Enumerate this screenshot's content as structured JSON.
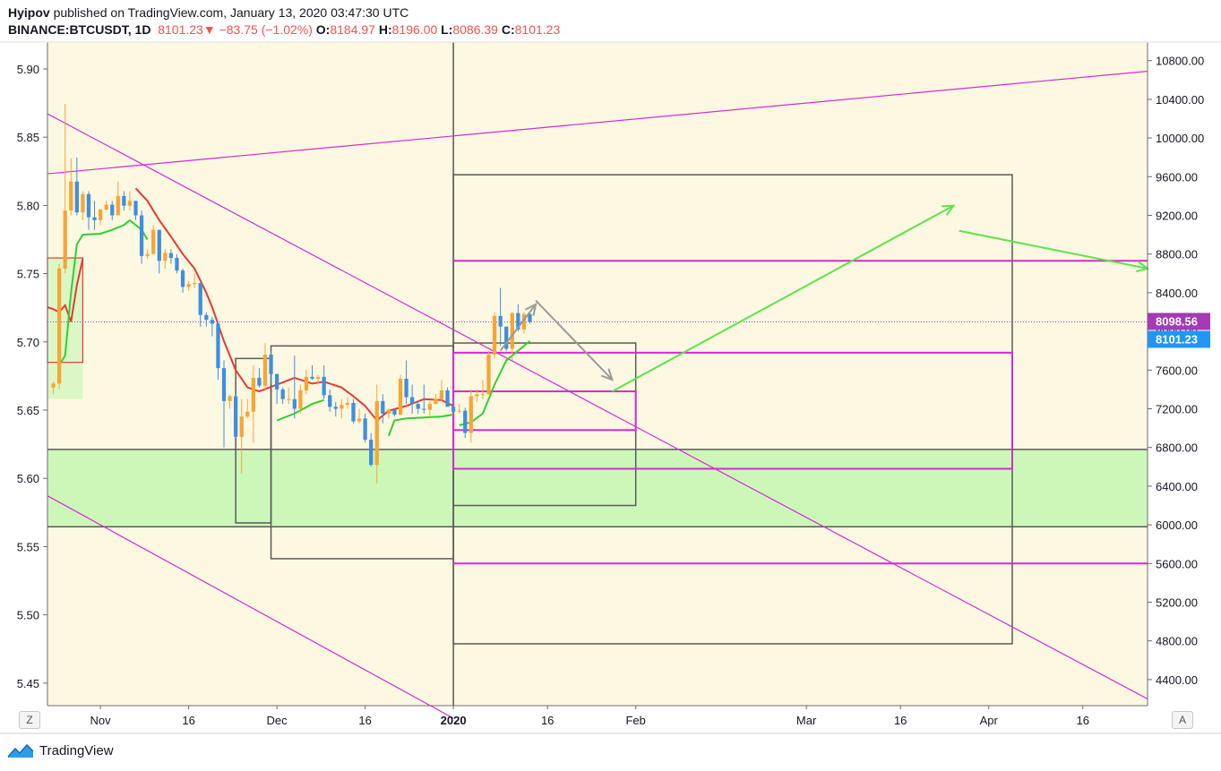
{
  "header": {
    "author": "Hyipov",
    "published": "published on TradingView.com, January 13, 2020 03:47:30 UTC",
    "symbol": "BINANCE:BTCUSDT, 1D",
    "last": "8101.23",
    "change": "−83.75 (−1.02%)",
    "o_label": "O:",
    "o_value": "8184.97",
    "h_label": "H:",
    "h_value": "8196.00",
    "l_label": "L:",
    "l_value": "8086.39",
    "c_label": "C:",
    "c_value": "8101.23"
  },
  "footer": {
    "brand": "TradingView"
  },
  "axis_buttons": {
    "left": "Z",
    "right": "A"
  },
  "colors": {
    "background": "#fdf8e1",
    "up_candle": "#f7a535",
    "down_candle": "#3d8fe0",
    "trendline": "#d42ad4",
    "box_gray": "#5a5a5a",
    "green_zone": "#cdf7b9",
    "green_arrow": "#5ee34b",
    "red_ma": "#e53935",
    "green_ma": "#2ed12e",
    "price_label_purple": "#a53ab5",
    "price_label_blue": "#2196f3"
  },
  "chart_data": {
    "type": "candlestick",
    "left_axis": {
      "ticks": [
        "5.90",
        "5.85",
        "5.80",
        "5.75",
        "5.70",
        "5.65",
        "5.60",
        "5.55",
        "5.50",
        "5.45"
      ]
    },
    "right_axis": {
      "ticks": [
        "10800.00",
        "10400.00",
        "10000.00",
        "9600.00",
        "9200.00",
        "8800.00",
        "8400.00",
        "8000.00",
        "7600.00",
        "7200.00",
        "6800.00",
        "6400.00",
        "6000.00",
        "5600.00",
        "5200.00",
        "4800.00",
        "4400.00"
      ],
      "range": [
        4100,
        11000
      ]
    },
    "x_axis": {
      "ticks": [
        "Nov",
        "16",
        "Dec",
        "16",
        "2020",
        "16",
        "Feb",
        "Mar",
        "16",
        "Apr",
        "16"
      ],
      "range": [
        "2019-10-23",
        "2020-04-27"
      ]
    },
    "price_labels": [
      {
        "value": "8098.56",
        "color": "#a53ab5"
      },
      {
        "value": "8101.23",
        "color": "#2196f3"
      }
    ],
    "candles": [
      [
        "2019-10-24",
        7420,
        7480,
        7350,
        7460
      ],
      [
        "2019-10-25",
        7460,
        8700,
        7400,
        8650
      ],
      [
        "2019-10-26",
        8650,
        10350,
        8600,
        9250
      ],
      [
        "2019-10-27",
        9250,
        9790,
        9200,
        9550
      ],
      [
        "2019-10-28",
        9550,
        9800,
        9200,
        9230
      ],
      [
        "2019-10-29",
        9230,
        9450,
        9150,
        9420
      ],
      [
        "2019-10-30",
        9420,
        9450,
        9050,
        9180
      ],
      [
        "2019-10-31",
        9180,
        9350,
        9050,
        9150
      ],
      [
        "2019-11-01",
        9150,
        9270,
        9100,
        9260
      ],
      [
        "2019-11-02",
        9260,
        9350,
        9250,
        9310
      ],
      [
        "2019-11-03",
        9310,
        9350,
        9150,
        9200
      ],
      [
        "2019-11-04",
        9200,
        9550,
        9200,
        9400
      ],
      [
        "2019-11-05",
        9400,
        9450,
        9250,
        9300
      ],
      [
        "2019-11-06",
        9300,
        9450,
        9250,
        9350
      ],
      [
        "2019-11-07",
        9350,
        9350,
        9150,
        9200
      ],
      [
        "2019-11-08",
        9200,
        9250,
        8700,
        8780
      ],
      [
        "2019-11-09",
        8780,
        8850,
        8750,
        8800
      ],
      [
        "2019-11-10",
        8800,
        9100,
        8800,
        9050
      ],
      [
        "2019-11-11",
        9050,
        9050,
        8600,
        8730
      ],
      [
        "2019-11-12",
        8730,
        8850,
        8650,
        8810
      ],
      [
        "2019-11-13",
        8810,
        8850,
        8700,
        8760
      ],
      [
        "2019-11-14",
        8760,
        8800,
        8600,
        8630
      ],
      [
        "2019-11-15",
        8630,
        8650,
        8400,
        8460
      ],
      [
        "2019-11-16",
        8460,
        8520,
        8420,
        8490
      ],
      [
        "2019-11-17",
        8490,
        8600,
        8450,
        8500
      ],
      [
        "2019-11-18",
        8500,
        8500,
        8050,
        8170
      ],
      [
        "2019-11-19",
        8170,
        8200,
        8050,
        8120
      ],
      [
        "2019-11-20",
        8120,
        8150,
        7950,
        8080
      ],
      [
        "2019-11-21",
        8080,
        8100,
        7500,
        7620
      ],
      [
        "2019-11-22",
        7620,
        7700,
        6800,
        7280
      ],
      [
        "2019-11-23",
        7280,
        7350,
        7200,
        7330
      ],
      [
        "2019-11-24",
        7330,
        7350,
        6900,
        6910
      ],
      [
        "2019-11-25",
        6910,
        7300,
        6530,
        7120
      ],
      [
        "2019-11-26",
        7120,
        7300,
        7100,
        7170
      ],
      [
        "2019-11-27",
        7170,
        7650,
        6850,
        7520
      ],
      [
        "2019-11-28",
        7520,
        7620,
        7420,
        7440
      ],
      [
        "2019-11-29",
        7440,
        7880,
        7400,
        7760
      ],
      [
        "2019-11-30",
        7760,
        7800,
        7460,
        7560
      ],
      [
        "2019-12-01",
        7560,
        7560,
        7250,
        7400
      ],
      [
        "2019-12-02",
        7400,
        7420,
        7250,
        7300
      ],
      [
        "2019-12-03",
        7300,
        7420,
        7250,
        7300
      ],
      [
        "2019-12-04",
        7300,
        7750,
        7100,
        7200
      ],
      [
        "2019-12-05",
        7200,
        7450,
        7150,
        7390
      ],
      [
        "2019-12-06",
        7390,
        7600,
        7350,
        7530
      ],
      [
        "2019-12-07",
        7530,
        7650,
        7500,
        7510
      ],
      [
        "2019-12-08",
        7510,
        7550,
        7450,
        7530
      ],
      [
        "2019-12-09",
        7530,
        7650,
        7300,
        7340
      ],
      [
        "2019-12-10",
        7340,
        7400,
        7170,
        7220
      ],
      [
        "2019-12-11",
        7220,
        7270,
        7120,
        7200
      ],
      [
        "2019-12-12",
        7200,
        7300,
        7100,
        7240
      ],
      [
        "2019-12-13",
        7240,
        7320,
        7200,
        7260
      ],
      [
        "2019-12-14",
        7260,
        7300,
        7050,
        7070
      ],
      [
        "2019-12-15",
        7070,
        7200,
        7050,
        7100
      ],
      [
        "2019-12-16",
        7100,
        7150,
        6850,
        6880
      ],
      [
        "2019-12-17",
        6880,
        6950,
        6600,
        6620
      ],
      [
        "2019-12-18",
        6620,
        7450,
        6430,
        7280
      ],
      [
        "2019-12-19",
        7280,
        7350,
        7050,
        7150
      ],
      [
        "2019-12-20",
        7150,
        7200,
        7100,
        7190
      ],
      [
        "2019-12-21",
        7190,
        7200,
        7120,
        7140
      ],
      [
        "2019-12-22",
        7140,
        7550,
        7130,
        7510
      ],
      [
        "2019-12-23",
        7510,
        7700,
        7250,
        7320
      ],
      [
        "2019-12-24",
        7320,
        7450,
        7150,
        7250
      ],
      [
        "2019-12-25",
        7250,
        7280,
        7150,
        7200
      ],
      [
        "2019-12-26",
        7200,
        7450,
        7150,
        7190
      ],
      [
        "2019-12-27",
        7190,
        7280,
        7100,
        7250
      ],
      [
        "2019-12-28",
        7250,
        7350,
        7250,
        7300
      ],
      [
        "2019-12-29",
        7300,
        7500,
        7280,
        7390
      ],
      [
        "2019-12-30",
        7390,
        7420,
        7230,
        7220
      ],
      [
        "2019-12-31",
        7220,
        7300,
        7150,
        7170
      ],
      [
        "2020-01-01",
        7170,
        7250,
        7150,
        7180
      ],
      [
        "2020-01-02",
        7180,
        7210,
        6900,
        6950
      ],
      [
        "2020-01-03",
        6950,
        7400,
        6850,
        7330
      ],
      [
        "2020-01-04",
        7330,
        7400,
        7270,
        7350
      ],
      [
        "2020-01-05",
        7350,
        7500,
        7300,
        7350
      ],
      [
        "2020-01-06",
        7350,
        7800,
        7350,
        7760
      ],
      [
        "2020-01-07",
        7760,
        8200,
        7720,
        8160
      ],
      [
        "2020-01-08",
        8160,
        8450,
        7850,
        8050
      ],
      [
        "2020-01-09",
        8050,
        8050,
        7800,
        7820
      ],
      [
        "2020-01-10",
        7820,
        8200,
        7700,
        8190
      ],
      [
        "2020-01-11",
        8190,
        8280,
        8000,
        8020
      ],
      [
        "2020-01-12",
        8020,
        8200,
        7980,
        8180
      ],
      [
        "2020-01-13",
        8180,
        8200,
        8080,
        8100
      ]
    ],
    "moving_averages": [
      {
        "color": "#e53935",
        "points": [
          [
            "2019-10-23",
            8250
          ],
          [
            "2019-10-24",
            8230
          ],
          [
            "2019-10-25",
            8200
          ],
          [
            "2019-10-26",
            8270
          ],
          [
            "2019-10-27",
            8100
          ],
          [
            "2019-10-28",
            8480
          ],
          [
            "2019-10-29",
            8750
          ]
        ]
      },
      {
        "color": "#e53935",
        "points": [
          [
            "2019-11-07",
            9480
          ],
          [
            "2019-11-09",
            9350
          ],
          [
            "2019-11-11",
            9150
          ],
          [
            "2019-11-13",
            8980
          ],
          [
            "2019-11-15",
            8800
          ],
          [
            "2019-11-17",
            8650
          ],
          [
            "2019-11-19",
            8400
          ],
          [
            "2019-11-20",
            8250
          ],
          [
            "2019-11-22",
            7900
          ],
          [
            "2019-11-24",
            7600
          ],
          [
            "2019-11-26",
            7420
          ],
          [
            "2019-11-28",
            7380
          ],
          [
            "2019-12-01",
            7450
          ],
          [
            "2019-12-04",
            7520
          ],
          [
            "2019-12-07",
            7460
          ],
          [
            "2019-12-09",
            7480
          ],
          [
            "2019-12-12",
            7420
          ],
          [
            "2019-12-14",
            7330
          ],
          [
            "2019-12-16",
            7230
          ],
          [
            "2019-12-18",
            7080
          ],
          [
            "2019-12-20",
            7180
          ],
          [
            "2019-12-23",
            7230
          ],
          [
            "2019-12-26",
            7300
          ],
          [
            "2019-12-29",
            7290
          ],
          [
            "2019-12-31",
            7230
          ]
        ]
      },
      {
        "color": "#2ed12e",
        "points": [
          [
            "2019-10-25",
            7650
          ],
          [
            "2019-10-26",
            7750
          ],
          [
            "2019-10-27",
            8400
          ],
          [
            "2019-10-28",
            8900
          ],
          [
            "2019-10-29",
            9000
          ],
          [
            "2019-11-01",
            9010
          ],
          [
            "2019-11-03",
            9050
          ],
          [
            "2019-11-05",
            9100
          ],
          [
            "2019-11-06",
            9150
          ],
          [
            "2019-11-08",
            9050
          ],
          [
            "2019-11-09",
            8950
          ]
        ]
      },
      {
        "color": "#2ed12e",
        "points": [
          [
            "2019-12-20",
            6920
          ],
          [
            "2019-12-21",
            7080
          ],
          [
            "2019-12-23",
            7100
          ],
          [
            "2019-12-26",
            7110
          ],
          [
            "2019-12-29",
            7120
          ],
          [
            "2019-12-31",
            7140
          ]
        ]
      },
      {
        "color": "#2ed12e",
        "points": [
          [
            "2019-12-01",
            7080
          ],
          [
            "2019-12-04",
            7150
          ],
          [
            "2019-12-07",
            7250
          ],
          [
            "2019-12-09",
            7290
          ]
        ]
      },
      {
        "color": "#2ed12e",
        "points": [
          [
            "2020-01-01",
            7030
          ],
          [
            "2020-01-03",
            7060
          ],
          [
            "2020-01-05",
            7150
          ],
          [
            "2020-01-07",
            7450
          ],
          [
            "2020-01-09",
            7700
          ],
          [
            "2020-01-11",
            7800
          ],
          [
            "2020-01-13",
            7900
          ]
        ]
      }
    ],
    "drawings": {
      "purple_trendlines": [
        [
          [
            "2019-10-23",
            9630
          ],
          [
            "2020-04-27",
            10690
          ]
        ],
        [
          [
            "2019-10-23",
            10250
          ],
          [
            "2020-04-27",
            4200
          ]
        ],
        [
          [
            "2019-10-23",
            6300
          ],
          [
            "2019-12-31",
            4000
          ]
        ]
      ],
      "gray_boxes": [
        [
          [
            "2019-11-24",
            6020
          ],
          [
            "2019-11-30",
            7720
          ]
        ],
        [
          [
            "2019-11-30",
            5650
          ],
          [
            "2019-12-31",
            7850
          ]
        ],
        [
          [
            "2019-12-31",
            6200
          ],
          [
            "2020-01-31",
            7880
          ]
        ],
        [
          [
            "2019-12-31",
            4770
          ],
          [
            "2020-04-04",
            9620
          ]
        ]
      ],
      "red_box": [
        [
          "2019-10-23",
          7680
        ],
        [
          "2019-10-29",
          8760
        ]
      ],
      "green_zone": [
        [
          "2019-10-23",
          5980
        ],
        [
          "2020-04-27",
          6780
        ]
      ],
      "green_zone_upper": [
        [
          "2019-10-23",
          7300
        ],
        [
          "2019-10-29",
          8760
        ]
      ],
      "magenta_boxes": [
        [
          [
            "2019-12-31",
            6980
          ],
          [
            "2020-01-31",
            7380
          ]
        ],
        [
          [
            "2019-12-31",
            6580
          ],
          [
            "2020-04-04",
            7780
          ]
        ]
      ],
      "magenta_hlines": [
        8730,
        5600
      ],
      "dotted_price_line": 8098.56,
      "arrows": [
        {
          "color": "#9a9a9a",
          "from": [
            "2020-01-08",
            7800
          ],
          "to": [
            "2020-01-14",
            8280
          ]
        },
        {
          "color": "#9a9a9a",
          "from": [
            "2020-01-14",
            8320
          ],
          "to": [
            "2020-01-27",
            7500
          ]
        },
        {
          "color": "#5ee34b",
          "from": [
            "2020-01-27",
            7380
          ],
          "to": [
            "2020-03-25",
            9300
          ]
        },
        {
          "color": "#5ee34b",
          "from": [
            "2020-03-26",
            9040
          ],
          "to": [
            "2020-04-27",
            8650
          ]
        }
      ]
    }
  }
}
